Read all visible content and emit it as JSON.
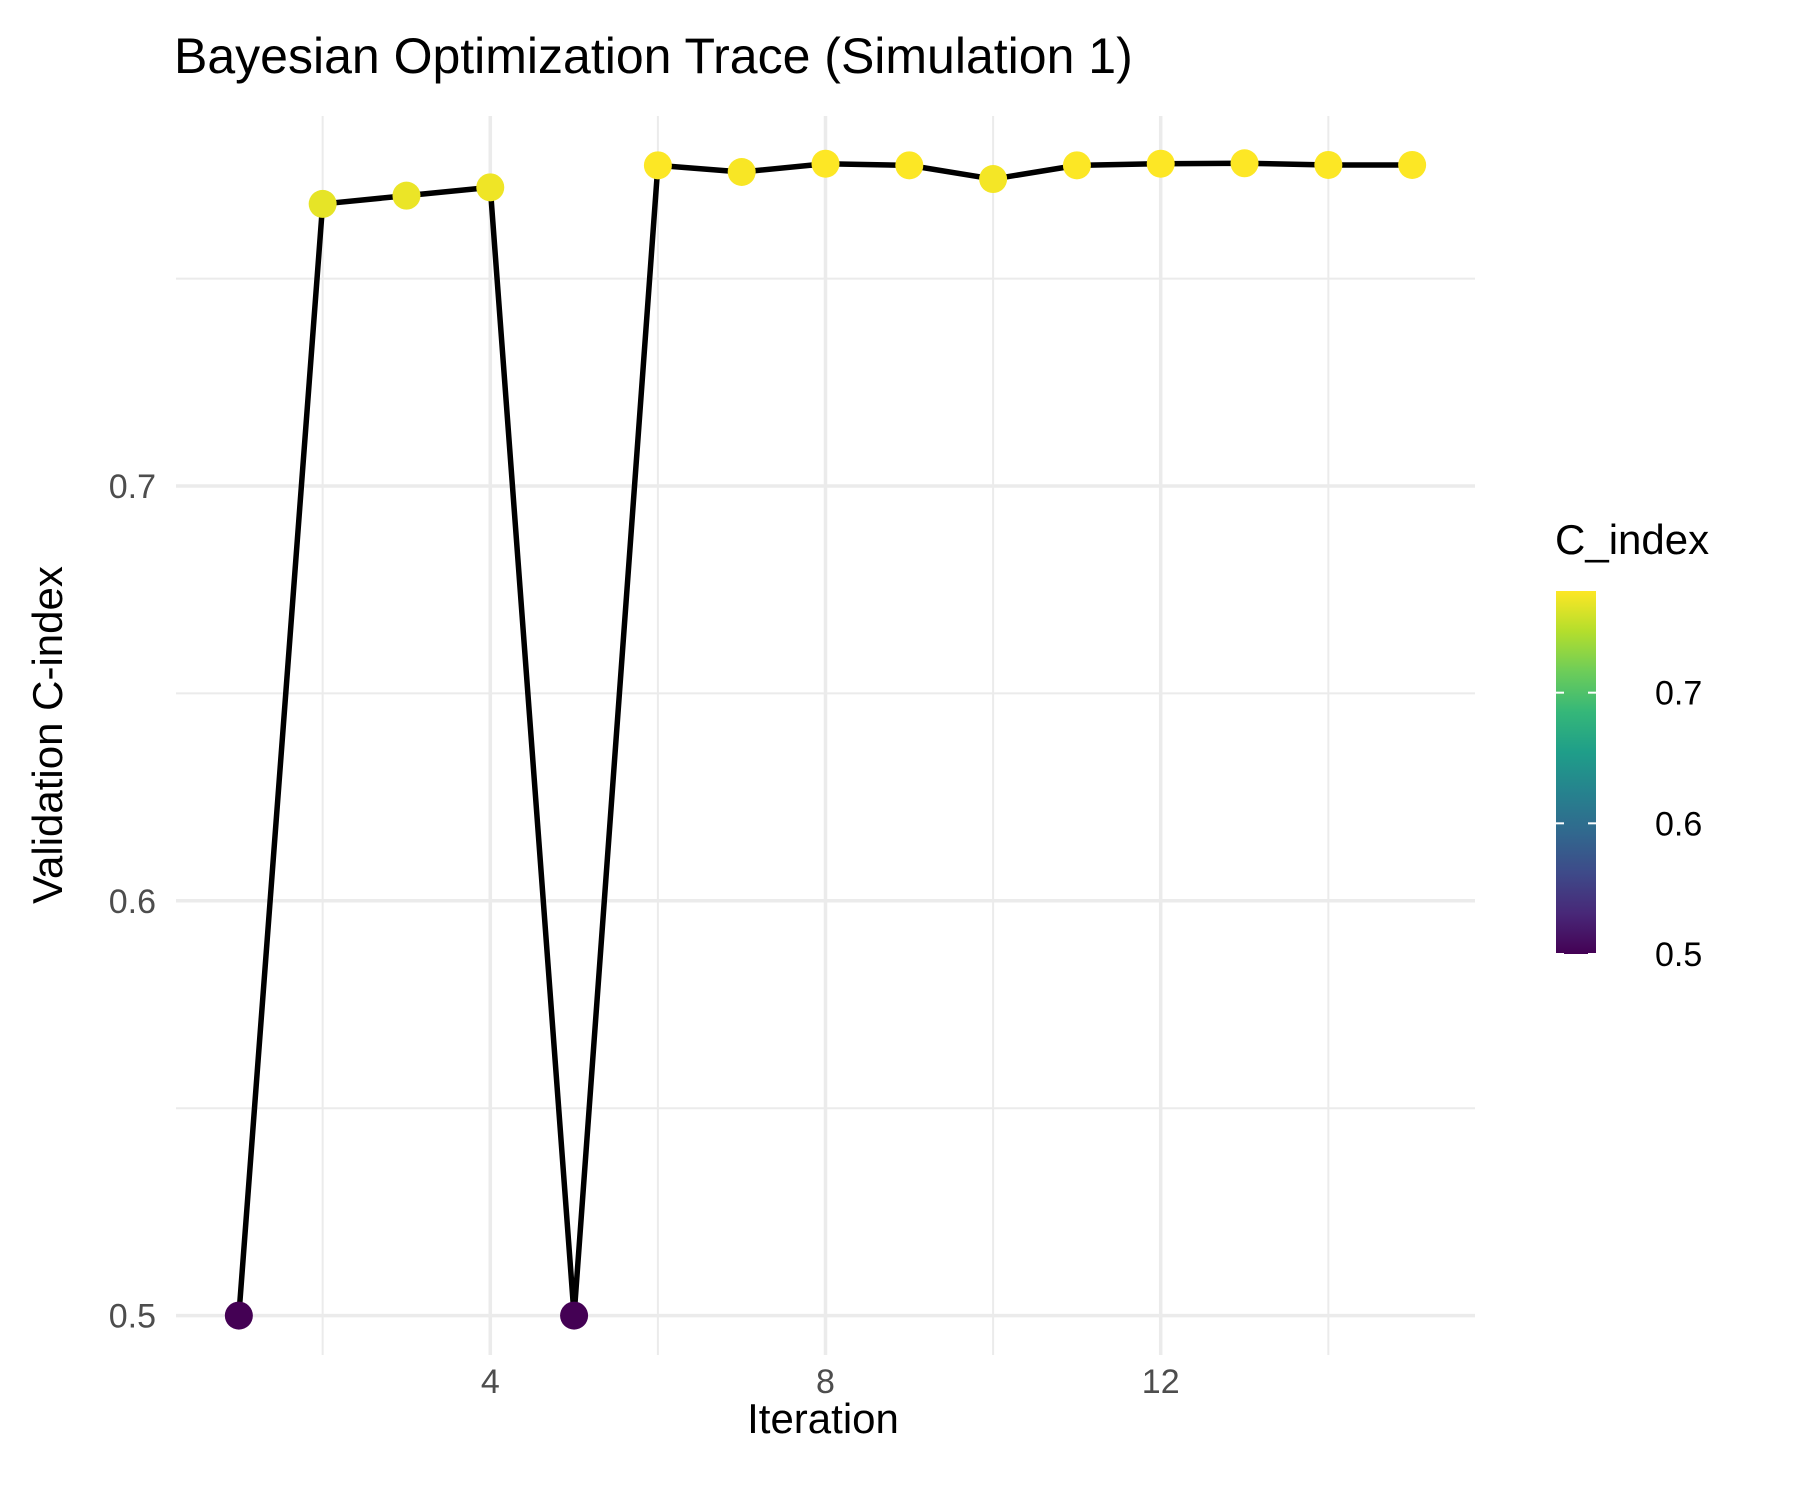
{
  "chart_data": {
    "type": "line",
    "title": "Bayesian Optimization Trace (Simulation 1)",
    "xlabel": "Iteration",
    "ylabel": "Validation C-index",
    "x": [
      1,
      2,
      3,
      4,
      5,
      6,
      7,
      8,
      9,
      10,
      11,
      12,
      13,
      14,
      15
    ],
    "y": [
      0.5,
      0.768,
      0.77,
      0.772,
      0.5,
      0.7773,
      0.7757,
      0.7777,
      0.7773,
      0.774,
      0.7773,
      0.7777,
      0.7778,
      0.7774,
      0.7774
    ],
    "xlim": [
      0.25,
      15.75
    ],
    "ylim": [
      0.4905,
      0.7892
    ],
    "x_ticks": [
      4,
      8,
      12
    ],
    "x_tick_labels": [
      "4",
      "8",
      "12"
    ],
    "y_ticks": [
      0.5,
      0.6,
      0.7
    ],
    "y_tick_labels": [
      "0.5",
      "0.6",
      "0.7"
    ],
    "grid": true,
    "line_color": "#000000",
    "legend": {
      "title": "C_index",
      "position": "right",
      "type": "colorbar",
      "palette": "viridis",
      "range": [
        0.5,
        0.7778
      ],
      "ticks": [
        0.5,
        0.6,
        0.7
      ],
      "tick_labels": [
        "0.5",
        "0.6",
        "0.7"
      ],
      "colors": [
        "#440154",
        "#482878",
        "#3E4A89",
        "#31688E",
        "#26828E",
        "#1F9E89",
        "#35B779",
        "#6DCD59",
        "#B4DE2C",
        "#FDE725"
      ]
    }
  }
}
